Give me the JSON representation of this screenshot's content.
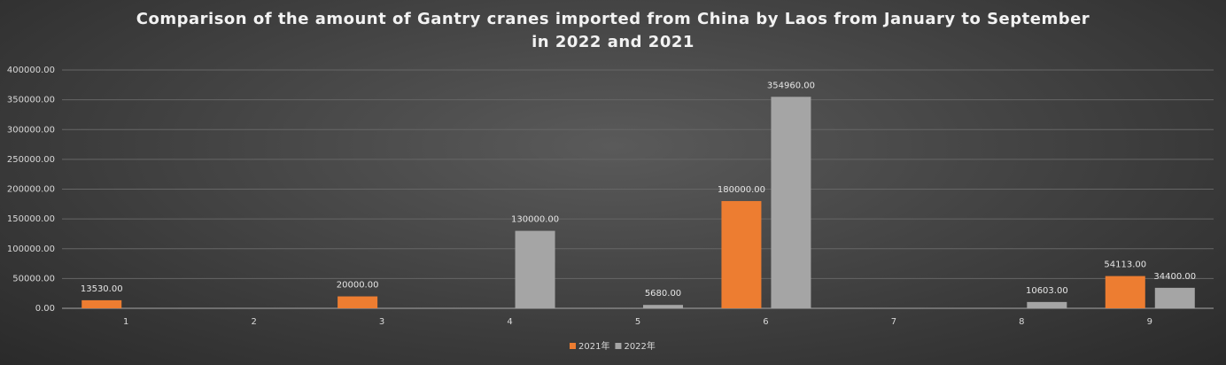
{
  "chart_data": {
    "type": "bar",
    "title": "Comparison of the amount of Gantry cranes imported from China by Laos from January to September in 2022 and 2021",
    "categories": [
      "1",
      "2",
      "3",
      "4",
      "5",
      "6",
      "7",
      "8",
      "9"
    ],
    "series": [
      {
        "name": "2021年",
        "color": "#ed7d31",
        "values": [
          13530,
          null,
          20000,
          null,
          null,
          180000,
          null,
          null,
          54113
        ],
        "value_labels": [
          "13530.00",
          null,
          "20000.00",
          null,
          null,
          "180000.00",
          null,
          null,
          "54113.00"
        ]
      },
      {
        "name": "2022年",
        "color": "#a5a5a5",
        "values": [
          null,
          null,
          null,
          130000,
          5680,
          354960,
          null,
          10603,
          34400
        ],
        "value_labels": [
          null,
          null,
          null,
          "130000.00",
          "5680.00",
          "354960.00",
          null,
          "10603.00",
          "34400.00"
        ]
      }
    ],
    "ylim": [
      0,
      400000
    ],
    "yticks": [
      {
        "value": 0,
        "label": "0.00"
      },
      {
        "value": 50000,
        "label": "50000.00"
      },
      {
        "value": 100000,
        "label": "100000.00"
      },
      {
        "value": 150000,
        "label": "150000.00"
      },
      {
        "value": 200000,
        "label": "200000.00"
      },
      {
        "value": 250000,
        "label": "250000.00"
      },
      {
        "value": 300000,
        "label": "300000.00"
      },
      {
        "value": 350000,
        "label": "350000.00"
      },
      {
        "value": 400000,
        "label": "400000.00"
      }
    ],
    "grid": true,
    "legend": "bottom"
  }
}
